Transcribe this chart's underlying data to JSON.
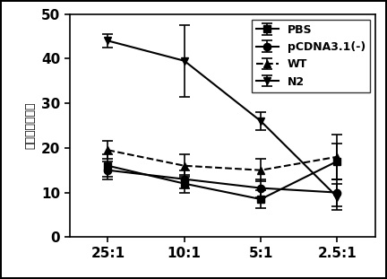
{
  "x_labels": [
    "25:1",
    "10:1",
    "5:1",
    "2.5:1"
  ],
  "x_positions": [
    0,
    1,
    2,
    3
  ],
  "series": {
    "PBS": {
      "y": [
        16,
        12,
        8.5,
        17
      ],
      "yerr": [
        2.5,
        2,
        2,
        4
      ],
      "marker": "s",
      "linestyle": "-",
      "color": "#000000",
      "label": "PBS"
    },
    "pCDNA3.1(-)": {
      "y": [
        15,
        13,
        11,
        10
      ],
      "yerr": [
        2,
        2,
        2,
        3
      ],
      "marker": "o",
      "linestyle": "-",
      "color": "#000000",
      "label": "pCDNA3.1(-)"
    },
    "WT": {
      "y": [
        19.5,
        16,
        15,
        18
      ],
      "yerr": [
        2,
        2.5,
        2.5,
        5
      ],
      "marker": "^",
      "linestyle": "--",
      "color": "#000000",
      "label": "WT"
    },
    "N2": {
      "y": [
        44,
        39.5,
        26,
        9
      ],
      "yerr": [
        1.5,
        8,
        2,
        3
      ],
      "marker": "v",
      "linestyle": "-",
      "color": "#000000",
      "label": "N2"
    }
  },
  "ylabel": "特异性杀伤效率",
  "ylim": [
    0,
    50
  ],
  "yticks": [
    0,
    10,
    20,
    30,
    40,
    50
  ],
  "title": "",
  "background_color": "#ffffff",
  "legend_fontsize": 9,
  "axis_fontsize": 10,
  "tick_fontsize": 11,
  "series_order": [
    "PBS",
    "pCDNA3.1(-)",
    "WT",
    "N2"
  ]
}
